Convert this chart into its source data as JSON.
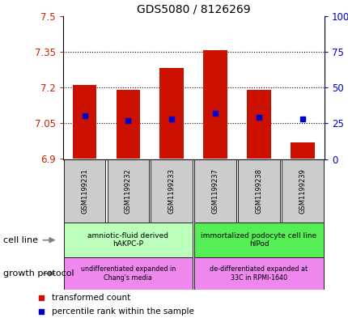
{
  "title": "GDS5080 / 8126269",
  "samples": [
    "GSM1199231",
    "GSM1199232",
    "GSM1199233",
    "GSM1199237",
    "GSM1199238",
    "GSM1199239"
  ],
  "bar_bottom": 6.9,
  "bar_tops": [
    7.21,
    7.19,
    7.28,
    7.355,
    7.19,
    6.97
  ],
  "percentile_ranks": [
    30,
    27,
    28,
    32,
    29,
    28
  ],
  "ylim": [
    6.9,
    7.5
  ],
  "yticks_left": [
    6.9,
    7.05,
    7.2,
    7.35,
    7.5
  ],
  "yticks_right": [
    0,
    25,
    50,
    75,
    100
  ],
  "bar_color": "#cc1100",
  "percentile_color": "#0000cc",
  "cell_line_groups": [
    {
      "label": "amniotic-fluid derived\nhAKPC-P",
      "start": 0,
      "end": 3,
      "color": "#bbffbb"
    },
    {
      "label": "immortalized podocyte cell line\nhIPod",
      "start": 3,
      "end": 6,
      "color": "#55ee55"
    }
  ],
  "growth_protocol_groups": [
    {
      "label": "undifferentiated expanded in\nChang's media",
      "start": 0,
      "end": 3,
      "color": "#ee88ee"
    },
    {
      "label": "de-differentiated expanded at\n33C in RPMI-1640",
      "start": 3,
      "end": 6,
      "color": "#ee88ee"
    }
  ],
  "cell_line_label": "cell line",
  "growth_protocol_label": "growth protocol",
  "legend_red_label": "transformed count",
  "legend_blue_label": "percentile rank within the sample",
  "tick_color_left": "#cc2200",
  "tick_color_right": "#0000cc",
  "sample_box_color": "#cccccc",
  "bar_width": 0.55
}
